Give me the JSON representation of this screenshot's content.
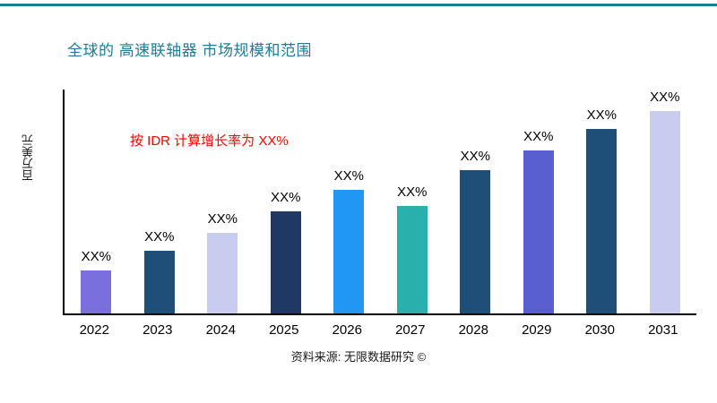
{
  "page": {
    "source": "资料来源: 无限数据研究 ©",
    "accent_color": "#1F7A96",
    "top_line_color": "#17808F"
  },
  "chart_data": {
    "type": "bar",
    "title": "全球的 高速联轴器 市场规模和范围",
    "ylabel": "百万美元",
    "xlabel": "",
    "annotation": "按 IDR 计算增长率为 XX%",
    "annotation_color": "#FF0000",
    "categories": [
      "2022",
      "2023",
      "2024",
      "2025",
      "2026",
      "2027",
      "2028",
      "2029",
      "2030",
      "2031"
    ],
    "values": [
      48,
      70,
      90,
      114,
      138,
      120,
      160,
      182,
      206,
      230
    ],
    "bar_labels": [
      "XX%",
      "XX%",
      "XX%",
      "XX%",
      "XX%",
      "XX%",
      "XX%",
      "XX%",
      "XX%",
      "XX%"
    ],
    "colors": [
      "#7B6FDE",
      "#1F4E79",
      "#C9CCEF",
      "#203864",
      "#2196F3",
      "#2AB0AC",
      "#1F4E79",
      "#5A5FD0",
      "#1F4E79",
      "#C9CCEF"
    ],
    "ylim": [
      0,
      250
    ],
    "grid": false,
    "legend": false
  }
}
